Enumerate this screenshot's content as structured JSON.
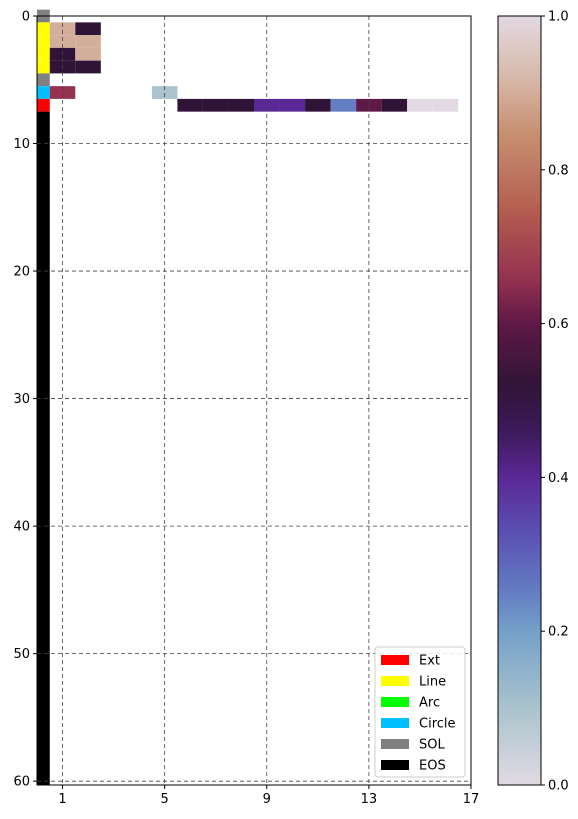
{
  "chart_data": {
    "type": "heatmap",
    "x_ticks": [
      "1",
      "5",
      "9",
      "13",
      "17"
    ],
    "y_ticks": [
      "0",
      "10",
      "20",
      "30",
      "40",
      "50",
      "60"
    ],
    "xlim": [
      0,
      17
    ],
    "ylim": [
      60.3,
      0
    ],
    "grid": true,
    "row_types": [
      {
        "row": 0,
        "type": "SOL"
      },
      {
        "row": 1,
        "type": "Line"
      },
      {
        "row": 2,
        "type": "Line"
      },
      {
        "row": 3,
        "type": "Line"
      },
      {
        "row": 4,
        "type": "Line"
      },
      {
        "row": 5,
        "type": "SOL"
      },
      {
        "row": 6,
        "type": "Circle"
      },
      {
        "row": 7,
        "type": "Ext"
      },
      {
        "row": 8,
        "type": "EOS",
        "to_row": 60
      }
    ],
    "cells": [
      {
        "row": 1,
        "col": 1,
        "value": 0.9
      },
      {
        "row": 1,
        "col": 2,
        "value": 0.52
      },
      {
        "row": 2,
        "col": 1,
        "value": 0.9
      },
      {
        "row": 2,
        "col": 2,
        "value": 0.9
      },
      {
        "row": 3,
        "col": 1,
        "value": 0.52
      },
      {
        "row": 3,
        "col": 2,
        "value": 0.9
      },
      {
        "row": 4,
        "col": 1,
        "value": 0.52
      },
      {
        "row": 4,
        "col": 2,
        "value": 0.52
      },
      {
        "row": 6,
        "col": 1,
        "value": 0.66
      },
      {
        "row": 6,
        "col": 5,
        "value": 0.1
      },
      {
        "row": 7,
        "col": 6,
        "value": 0.52
      },
      {
        "row": 7,
        "col": 7,
        "value": 0.52
      },
      {
        "row": 7,
        "col": 8,
        "value": 0.52
      },
      {
        "row": 7,
        "col": 9,
        "value": 0.4
      },
      {
        "row": 7,
        "col": 10,
        "value": 0.4
      },
      {
        "row": 7,
        "col": 11,
        "value": 0.52
      },
      {
        "row": 7,
        "col": 12,
        "value": 0.25
      },
      {
        "row": 7,
        "col": 13,
        "value": 0.6
      },
      {
        "row": 7,
        "col": 14,
        "value": 0.52
      },
      {
        "row": 7,
        "col": 15,
        "value": 0.0
      },
      {
        "row": 7,
        "col": 16,
        "value": 0.0
      }
    ],
    "legend": {
      "placement": "lower-right",
      "entries": [
        {
          "label": "Ext",
          "color": "#ff0000"
        },
        {
          "label": "Line",
          "color": "#ffff00"
        },
        {
          "label": "Arc",
          "color": "#00ff00"
        },
        {
          "label": "Circle",
          "color": "#00bfff"
        },
        {
          "label": "SOL",
          "color": "#808080"
        },
        {
          "label": "EOS",
          "color": "#000000"
        }
      ]
    },
    "colorbar": {
      "range": [
        0,
        1
      ],
      "ticks": [
        "0.0",
        "0.2",
        "0.4",
        "0.6",
        "0.8",
        "1.0"
      ],
      "colormap": "twilight"
    }
  }
}
